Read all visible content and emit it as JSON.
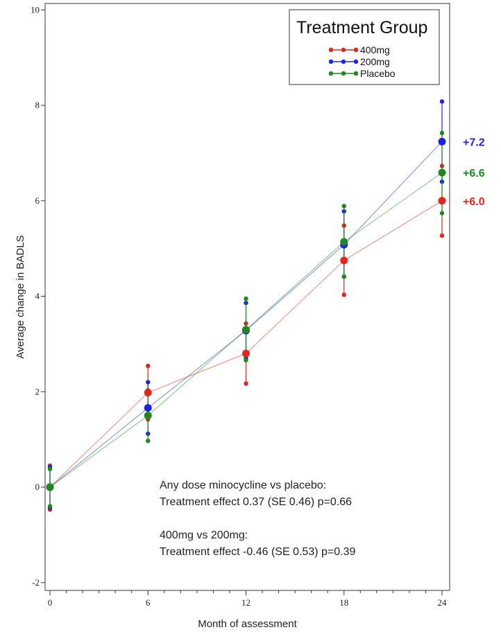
{
  "chart_data": {
    "type": "line",
    "xlabel": "Month of assessment",
    "ylabel": "Average change in BADLS",
    "x": [
      0,
      6,
      12,
      18,
      24
    ],
    "xticks": [
      "0",
      "6",
      "12",
      "18",
      "24"
    ],
    "yticks": [
      "-2",
      "0",
      "2",
      "4",
      "6",
      "8",
      "10"
    ],
    "xlim": [
      0,
      24
    ],
    "ylim": [
      -2,
      10
    ],
    "grid": false,
    "legend": {
      "title": "Treatment Group",
      "position": "top-right"
    },
    "series": [
      {
        "name": "400mg",
        "color": "#e8221c",
        "values": [
          0.0,
          1.98,
          2.8,
          4.75,
          6.0
        ],
        "lower": [
          -0.47,
          1.42,
          2.17,
          4.03,
          5.27
        ],
        "upper": [
          0.45,
          2.54,
          3.43,
          5.48,
          6.73
        ]
      },
      {
        "name": "200mg",
        "color": "#1c22e0",
        "values": [
          0.0,
          1.66,
          3.28,
          5.08,
          7.24
        ],
        "lower": [
          -0.43,
          1.12,
          2.7,
          4.41,
          6.4
        ],
        "upper": [
          0.42,
          2.2,
          3.86,
          5.78,
          8.08
        ]
      },
      {
        "name": "Placebo",
        "color": "#1c8a1c",
        "values": [
          0.0,
          1.5,
          3.3,
          5.14,
          6.59
        ],
        "lower": [
          -0.4,
          0.97,
          2.66,
          4.41,
          5.74
        ],
        "upper": [
          0.38,
          2.03,
          3.95,
          5.89,
          7.42
        ]
      }
    ],
    "end_labels": [
      {
        "text": "+7.2",
        "color": "#1c22e0",
        "y": 7.24
      },
      {
        "text": "+6.6",
        "color": "#1c8a1c",
        "y": 6.59
      },
      {
        "text": "+6.0",
        "color": "#e8221c",
        "y": 6.0
      }
    ],
    "annotations": [
      "Any dose minocycline vs placebo:",
      "Treatment effect 0.37 (SE 0.46) p=0.66",
      "400mg vs 200mg:",
      "Treatment effect -0.46 (SE 0.53) p=0.39"
    ]
  }
}
